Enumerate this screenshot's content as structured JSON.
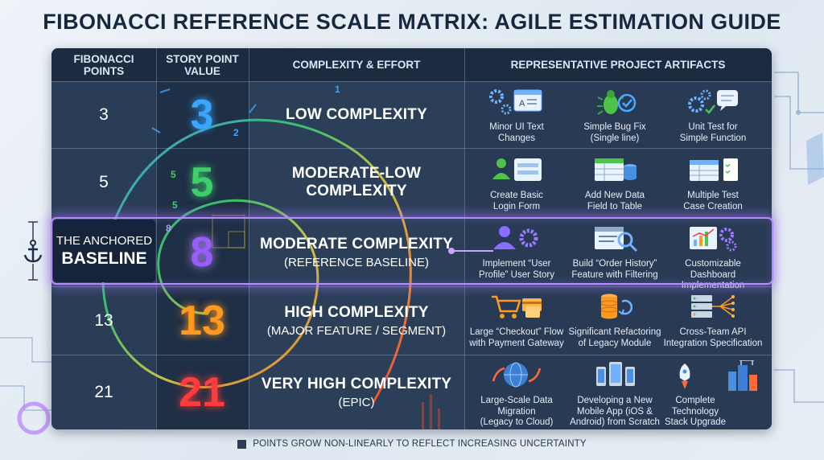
{
  "title": "FIBONACCI REFERENCE SCALE MATRIX: AGILE ESTIMATION GUIDE",
  "headers": {
    "col1": "FIBONACCI\nPOINTS",
    "col2": "STORY POINT\nVALUE",
    "col3": "COMPLEXITY & EFFORT",
    "col4": "REPRESENTATIVE PROJECT ARTIFACTS"
  },
  "anchor": {
    "line1": "THE ANCHORED",
    "line2": "BASELINE"
  },
  "spiral_labels": [
    "1",
    "2",
    "5",
    "5",
    "8"
  ],
  "rows": [
    {
      "points": "3",
      "value": "3",
      "color": "#3aa6ff",
      "complexity": "LOW COMPLEXITY",
      "complexity_sub": "",
      "artifacts": [
        "Minor UI Text\nChanges",
        "Simple Bug Fix\n(Single line)",
        "Unit Test for\nSimple Function"
      ]
    },
    {
      "points": "5",
      "value": "5",
      "color": "#3ecf6a",
      "complexity": "MODERATE-LOW\nCOMPLEXITY",
      "complexity_sub": "",
      "artifacts": [
        "Create Basic\nLogin Form",
        "Add New Data\nField to Table",
        "Multiple Test\nCase Creation"
      ]
    },
    {
      "points": "",
      "value": "8",
      "color": "#9b5cff",
      "complexity": "MODERATE COMPLEXITY",
      "complexity_sub": "(REFERENCE BASELINE)",
      "artifacts": [
        "Implement “User\nProfile” User Story",
        "Build “Order History”\nFeature with Filtering",
        "Customizable Dashboard\nImplementation"
      ]
    },
    {
      "points": "13",
      "value": "13",
      "color": "#ff9a1f",
      "complexity": "HIGH COMPLEXITY",
      "complexity_sub": "(MAJOR FEATURE / SEGMENT)",
      "artifacts": [
        "Large “Checkout” Flow\nwith Payment Gateway",
        "Significant Refactoring\nof Legacy Module",
        "Cross-Team API\nIntegration Specification"
      ]
    },
    {
      "points": "21",
      "value": "21",
      "color": "#ff3b3b",
      "complexity": "VERY HIGH COMPLEXITY",
      "complexity_sub": "(EPIC)",
      "artifacts": [
        "Large-Scale Data\nMigration\n(Legacy to Cloud)",
        "Developing a New\nMobile App (iOS &\nAndroid) from Scratch",
        "Complete\nTechnology\nStack Upgrade"
      ]
    }
  ],
  "icons": [
    [
      "gear-browser-icon",
      "bug-check-icon",
      "gear-chat-icon"
    ],
    [
      "user-form-icon",
      "table-database-icon",
      "checklist-icon"
    ],
    [
      "user-gear-icon",
      "search-list-icon",
      "dashboard-chart-icon"
    ],
    [
      "shopping-cart-icon",
      "database-refresh-icon",
      "server-network-icon"
    ],
    [
      "globe-migration-icon",
      "mobile-devices-icon",
      "rocket-city-icon"
    ]
  ],
  "footer": "POINTS GROW NON-LINEARLY TO REFLECT INCREASING UNCERTAINTY"
}
